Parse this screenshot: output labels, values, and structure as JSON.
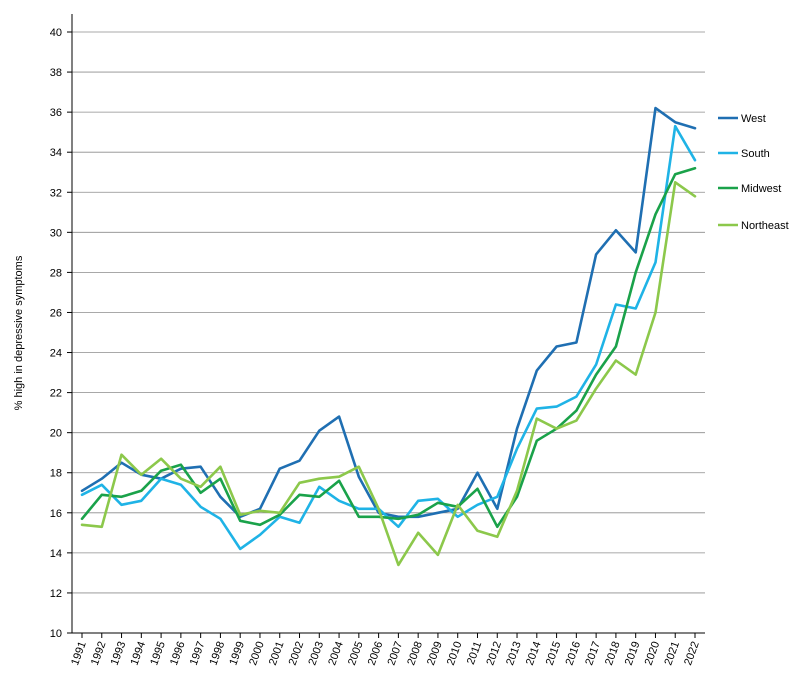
{
  "chart_data": {
    "type": "line",
    "title": "",
    "xlabel": "",
    "ylabel": "% high in depressive symptoms",
    "ylim": [
      10,
      40
    ],
    "yticks": [
      10,
      12,
      14,
      16,
      18,
      20,
      22,
      24,
      26,
      28,
      30,
      32,
      34,
      36,
      38,
      40
    ],
    "grid": true,
    "legend_position": "right",
    "x": [
      "1991",
      "1992",
      "1993",
      "1994",
      "1995",
      "1996",
      "1997",
      "1998",
      "1999",
      "2000",
      "2001",
      "2002",
      "2003",
      "2004",
      "2005",
      "2006",
      "2007",
      "2008",
      "2009",
      "2010",
      "2011",
      "2012",
      "2013",
      "2014",
      "2015",
      "2016",
      "2017",
      "2018",
      "2019",
      "2020",
      "2021",
      "2022"
    ],
    "series": [
      {
        "name": "West",
        "color": "#1f6fb2",
        "values": [
          17.1,
          17.7,
          18.5,
          17.9,
          17.7,
          18.2,
          18.3,
          16.8,
          15.8,
          16.2,
          18.2,
          18.6,
          20.1,
          20.8,
          17.8,
          16.0,
          15.8,
          15.8,
          16.0,
          16.2,
          18.0,
          16.2,
          20.2,
          23.1,
          24.3,
          24.5,
          28.9,
          30.1,
          29.0,
          36.2,
          35.5,
          35.2
        ]
      },
      {
        "name": "South",
        "color": "#1fb3e6",
        "values": [
          16.9,
          17.4,
          16.4,
          16.6,
          17.7,
          17.4,
          16.3,
          15.7,
          14.2,
          14.9,
          15.8,
          15.5,
          17.3,
          16.6,
          16.2,
          16.2,
          15.3,
          16.6,
          16.7,
          15.8,
          16.4,
          16.8,
          19.2,
          21.2,
          21.3,
          21.8,
          23.4,
          26.4,
          26.2,
          28.5,
          35.3,
          33.6
        ]
      },
      {
        "name": "Midwest",
        "color": "#1aa24a",
        "values": [
          15.7,
          16.9,
          16.8,
          17.1,
          18.1,
          18.4,
          17.0,
          17.7,
          15.6,
          15.4,
          15.9,
          16.9,
          16.8,
          17.6,
          15.8,
          15.8,
          15.7,
          15.9,
          16.5,
          16.3,
          17.2,
          15.3,
          16.8,
          19.6,
          20.2,
          21.1,
          22.9,
          24.3,
          28.0,
          30.9,
          32.9,
          33.2
        ]
      },
      {
        "name": "Northeast",
        "color": "#8cc84b",
        "values": [
          15.4,
          15.3,
          18.9,
          17.9,
          18.7,
          17.7,
          17.3,
          18.3,
          15.9,
          16.1,
          16.0,
          17.5,
          17.7,
          17.8,
          18.3,
          16.2,
          13.4,
          15.0,
          13.9,
          16.4,
          15.1,
          14.8,
          17.1,
          20.7,
          20.2,
          20.6,
          22.2,
          23.6,
          22.9,
          26.0,
          32.5,
          31.8
        ]
      }
    ]
  }
}
